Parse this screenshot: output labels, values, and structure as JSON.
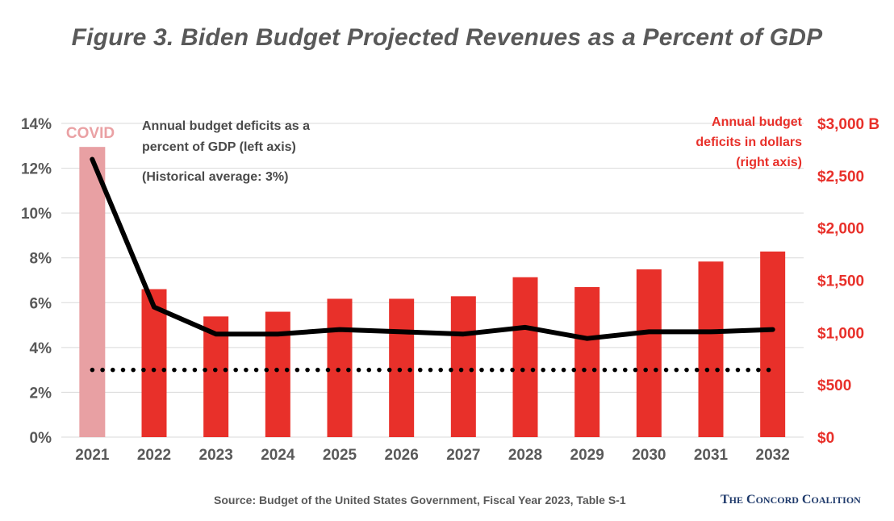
{
  "title": "Figure 3. Biden Budget Projected Revenues as a Percent of GDP",
  "source": "Source: Budget of the United States Government, Fiscal Year 2023, Table S-1",
  "brand": {
    "first_initial": "T",
    "first_rest": "HE",
    "second_initial": "C",
    "second_rest": "ONCORD",
    "third_initial": "C",
    "third_rest": "OALITION"
  },
  "colors": {
    "bar": "#e8302a",
    "bar_covid": "#e8a0a3",
    "line": "#000000",
    "axis_left": "#595959",
    "axis_right": "#e8302a",
    "grid": "#d9d9d9"
  },
  "chart_data": {
    "type": "bar+line",
    "categories": [
      "2021",
      "2022",
      "2023",
      "2024",
      "2025",
      "2026",
      "2027",
      "2028",
      "2029",
      "2030",
      "2031",
      "2032"
    ],
    "series": [
      {
        "name": "Annual budget deficits in dollars",
        "axis": "right",
        "kind": "bar",
        "values": [
          2775,
          1415,
          1154,
          1199,
          1323,
          1323,
          1347,
          1529,
          1435,
          1604,
          1679,
          1775
        ]
      },
      {
        "name": "Annual budget deficits as a percent of GDP",
        "axis": "left",
        "kind": "line",
        "values": [
          12.4,
          5.8,
          4.6,
          4.6,
          4.8,
          4.7,
          4.6,
          4.9,
          4.4,
          4.7,
          4.7,
          4.8
        ]
      },
      {
        "name": "Historical average",
        "axis": "left",
        "kind": "dotted-line",
        "value": 3
      }
    ],
    "left_axis": {
      "min": 0,
      "max": 14,
      "step": 2,
      "tick_labels": [
        "0%",
        "2%",
        "4%",
        "6%",
        "8%",
        "10%",
        "12%",
        "14%"
      ]
    },
    "right_axis": {
      "min": 0,
      "max": 3000,
      "step": 500,
      "tick_labels": [
        "$0",
        "$500",
        "$1,000",
        "$1,500",
        "$2,000",
        "$2,500",
        "$3,000 B"
      ]
    },
    "highlight": {
      "category": "2021",
      "label": "COVID"
    },
    "annotations": {
      "line_label": [
        "Annual budget deficits as a",
        "percent of GDP (left axis)"
      ],
      "historical": "(Historical average: 3%)",
      "bar_label": [
        "Annual budget",
        "deficits in dollars",
        "(right axis)"
      ]
    },
    "grid": true
  }
}
